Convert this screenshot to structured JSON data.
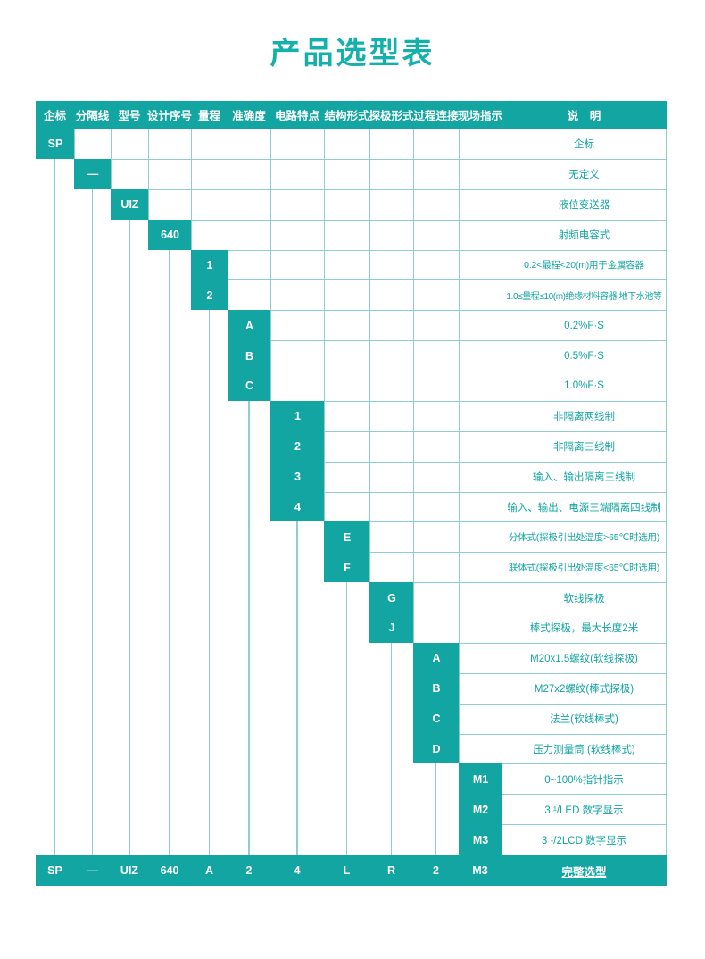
{
  "title": "产品选型表",
  "colors": {
    "teal": "#12a5a2",
    "grid_line": "#8ccfcd",
    "title_teal": "#14b0ab",
    "text_on_teal": "#ffffff"
  },
  "table": {
    "headers": [
      "企标",
      "分隔线",
      "型号",
      "设计序号",
      "量程",
      "准确度",
      "电路特点",
      "结构形式",
      "探极形式",
      "过程连接",
      "现场指示",
      "说　明"
    ],
    "rows": [
      {
        "col": 0,
        "code": "SP",
        "desc": "企标"
      },
      {
        "col": 1,
        "code": "—",
        "desc": "无定义"
      },
      {
        "col": 2,
        "code": "UIZ",
        "desc": "液位变送器"
      },
      {
        "col": 3,
        "code": "640",
        "desc": "射频电容式"
      },
      {
        "col": 4,
        "code": "1",
        "desc": "0.2<最程<20(m)用于金属容器"
      },
      {
        "col": 4,
        "code": "2",
        "desc": "1.0≤量程≤10(m)绝缘材料容器,地下水池等"
      },
      {
        "col": 5,
        "code": "A",
        "desc": "0.2%F·S"
      },
      {
        "col": 5,
        "code": "B",
        "desc": "0.5%F·S"
      },
      {
        "col": 5,
        "code": "C",
        "desc": "1.0%F·S"
      },
      {
        "col": 6,
        "code": "1",
        "desc": "非隔离两线制"
      },
      {
        "col": 6,
        "code": "2",
        "desc": "非隔离三线制"
      },
      {
        "col": 6,
        "code": "3",
        "desc": "输入、输出隔离三线制"
      },
      {
        "col": 6,
        "code": "4",
        "desc": "输入、输出、电源三端隔离四线制"
      },
      {
        "col": 7,
        "code": "E",
        "desc": "分体式(探极引出处温度>65℃时选用)"
      },
      {
        "col": 7,
        "code": "F",
        "desc": "联体式(探极引出处温度<65℃时选用)"
      },
      {
        "col": 8,
        "code": "G",
        "desc": "软线探极"
      },
      {
        "col": 8,
        "code": "J",
        "desc": "棒式探极，最大长度2米"
      },
      {
        "col": 9,
        "code": "A",
        "desc": "M20x1.5螺纹(软线探极)"
      },
      {
        "col": 9,
        "code": "B",
        "desc": "M27x2螺纹(棒式探极)"
      },
      {
        "col": 9,
        "code": "C",
        "desc": "法兰(软线棒式)"
      },
      {
        "col": 9,
        "code": "D",
        "desc": "压力测量筒 (软线棒式)"
      },
      {
        "col": 10,
        "code": "M1",
        "desc": "0~100%指针指示"
      },
      {
        "col": 10,
        "code": "M2",
        "desc": "3 ¹/LED 数字显示"
      },
      {
        "col": 10,
        "code": "M3",
        "desc": "3 ¹/2LCD 数字显示"
      }
    ],
    "footer": {
      "values": [
        "SP",
        "—",
        "UIZ",
        "640",
        "A",
        "2",
        "4",
        "L",
        "R",
        "2",
        "M3",
        "完整选型"
      ]
    }
  }
}
